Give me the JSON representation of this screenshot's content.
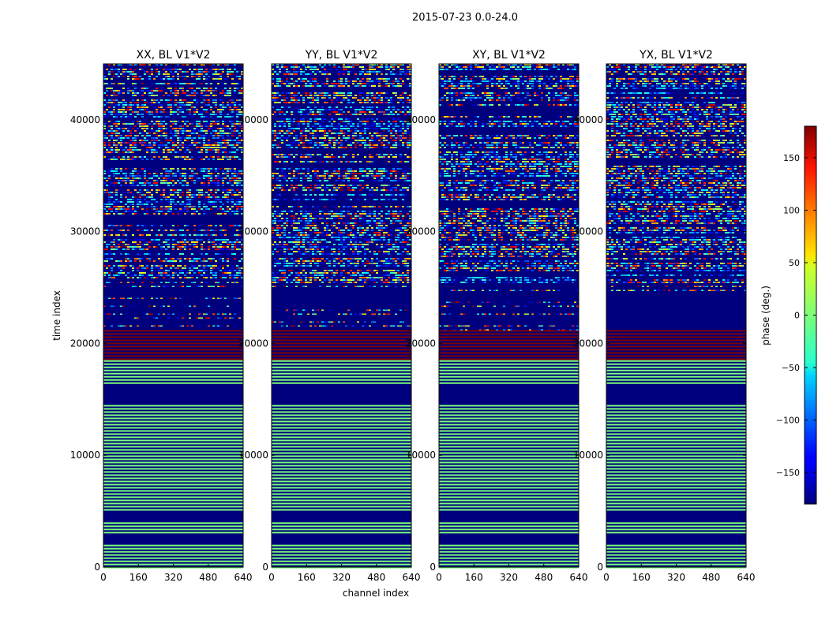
{
  "figure": {
    "suptitle": "2015-07-23 0.0-24.0",
    "xlabel": "channel index",
    "ylabel": "time index"
  },
  "chart_data": {
    "type": "heatmap",
    "panels": [
      {
        "title": "XX, BL V1*V2"
      },
      {
        "title": "YY, BL V1*V2"
      },
      {
        "title": "XY, BL V1*V2"
      },
      {
        "title": "YX, BL V1*V2"
      }
    ],
    "x_range": [
      0,
      640
    ],
    "y_range": [
      0,
      45000
    ],
    "x_ticks": [
      "0",
      "160",
      "320",
      "480",
      "640"
    ],
    "y_ticks": [
      "0",
      "10000",
      "20000",
      "30000",
      "40000"
    ],
    "x_tick_values": [
      0,
      160,
      320,
      480,
      640
    ],
    "y_tick_values": [
      0,
      10000,
      20000,
      30000,
      40000
    ],
    "colorscale": "jet",
    "colorbar": {
      "label": "phase (deg.)",
      "range": [
        -180,
        180
      ],
      "ticks": [
        "150",
        "100",
        "50",
        "0",
        "−50",
        "−100",
        "−150"
      ],
      "tick_values": [
        150,
        100,
        50,
        0,
        -50,
        -100,
        -150
      ]
    },
    "time_bands": [
      {
        "from": 0,
        "to": 2000,
        "pattern": "green-blue-stripes"
      },
      {
        "from": 2000,
        "to": 3000,
        "pattern": "dark-blue"
      },
      {
        "from": 3000,
        "to": 4000,
        "pattern": "green-blue-stripes"
      },
      {
        "from": 4000,
        "to": 5000,
        "pattern": "dark-blue"
      },
      {
        "from": 5000,
        "to": 14500,
        "pattern": "green-blue-stripes"
      },
      {
        "from": 14500,
        "to": 16500,
        "pattern": "dark-blue"
      },
      {
        "from": 16500,
        "to": 18500,
        "pattern": "green-blue-stripes"
      },
      {
        "from": 18500,
        "to": 21200,
        "pattern": "dark-red-blue-stripes"
      },
      {
        "from": 21200,
        "to": 25500,
        "pattern": "dark-blue-sparse-noise"
      },
      {
        "from": 25500,
        "to": 45000,
        "pattern": "noise-rows"
      }
    ]
  },
  "colors": {
    "frame": "#000000",
    "dark_blue": "#00007f",
    "dark_red": "#7f0000",
    "light_green": "#7dff7a"
  }
}
